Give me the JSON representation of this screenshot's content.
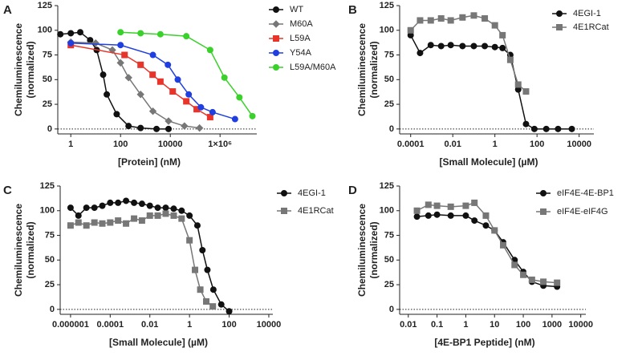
{
  "chart_data": [
    {
      "type": "scatter",
      "panel": "A",
      "xlabel": "[Protein] (nM)",
      "ylabel": [
        "Chemiluminescence",
        "(normalized)"
      ],
      "xscale": "log",
      "xlim": [
        0.3,
        30000000
      ],
      "xticks": [
        1,
        100,
        10000,
        {
          "value": 1000000,
          "label": "1×10⁶"
        }
      ],
      "ylim": [
        -5,
        125
      ],
      "yticks": [
        0,
        25,
        50,
        75,
        100,
        125
      ],
      "legend": "right",
      "series": [
        {
          "name": "WT",
          "color": "#111111",
          "marker": "circle",
          "x": [
            0.38,
            1,
            2.4,
            6,
            11,
            20,
            28,
            70,
            210,
            640,
            2800,
            8500
          ],
          "values": [
            96,
            97,
            98,
            90,
            80,
            55,
            35,
            15,
            3,
            1,
            0,
            0
          ]
        },
        {
          "name": "M60A",
          "color": "#777777",
          "marker": "diamond",
          "x": [
            1,
            10,
            47,
            100,
            210,
            640,
            2000,
            8500,
            37000,
            150000
          ],
          "values": [
            88,
            87,
            80,
            67,
            52,
            35,
            18,
            8,
            3,
            1
          ]
        },
        {
          "name": "L59A",
          "color": "#e8352b",
          "marker": "square",
          "x": [
            1,
            145,
            640,
            1950,
            4000,
            12500,
            44000,
            115000,
            400000
          ],
          "values": [
            85,
            75,
            65,
            55,
            48,
            38,
            28,
            20,
            12
          ]
        },
        {
          "name": "Y54A",
          "color": "#1f3fe0",
          "marker": "circle",
          "x": [
            1,
            100,
            2000,
            8000,
            20000,
            55000,
            170000,
            500000,
            4000000
          ],
          "values": [
            87,
            85,
            75,
            65,
            50,
            35,
            22,
            17,
            10
          ]
        },
        {
          "name": "L59A/M60A",
          "color": "#39d12a",
          "marker": "circle",
          "x": [
            100,
            640,
            4000,
            44000,
            400000,
            1500000,
            6000000,
            20000000
          ],
          "values": [
            98,
            97,
            96,
            94,
            80,
            52,
            32,
            13
          ]
        }
      ]
    },
    {
      "type": "scatter",
      "panel": "B",
      "xlabel": "[Small Molecule] (µM)",
      "ylabel": [
        "Chemiluminescence",
        "(normalized)"
      ],
      "xscale": "log",
      "xlim": [
        3e-05,
        50000
      ],
      "xticks": [
        0.0001,
        0.01,
        1,
        100,
        10000
      ],
      "ylim": [
        -5,
        125
      ],
      "yticks": [
        0,
        25,
        50,
        75,
        100,
        125
      ],
      "legend": "right",
      "series": [
        {
          "name": "4EGI-1",
          "color": "#111111",
          "marker": "circle",
          "x": [
            0.0001,
            0.00028,
            0.0009,
            0.0028,
            0.008,
            0.029,
            0.1,
            0.33,
            1,
            2.3,
            5.4,
            12.8,
            30,
            75,
            275,
            1000,
            4500
          ],
          "values": [
            95,
            77,
            85,
            84,
            85,
            84,
            84,
            84,
            83,
            82,
            75,
            40,
            5,
            0,
            0,
            0,
            0
          ]
        },
        {
          "name": "4E1RCat",
          "color": "#777777",
          "marker": "square",
          "x": [
            0.0001,
            0.00028,
            0.0009,
            0.0028,
            0.008,
            0.029,
            0.1,
            0.33,
            1,
            2.3,
            5.4,
            12.8,
            30
          ],
          "values": [
            100,
            110,
            110,
            112,
            110,
            113,
            115,
            112,
            105,
            95,
            70,
            45,
            38
          ]
        }
      ]
    },
    {
      "type": "scatter",
      "panel": "C",
      "xlabel": "[Small Molecule] (µM)",
      "ylabel": [
        "Chemiluminescence",
        "(normalized)"
      ],
      "xscale": "log",
      "xlim": [
        3e-07,
        16000
      ],
      "xticks": [
        1e-06,
        0.0001,
        0.01,
        1,
        100,
        10000
      ],
      "ylim": [
        -5,
        125
      ],
      "yticks": [
        0,
        25,
        50,
        75,
        100,
        125
      ],
      "legend": "right",
      "series": [
        {
          "name": "4EGI-1",
          "color": "#111111",
          "marker": "circle",
          "x": [
            1e-06,
            2.5e-06,
            6.3e-06,
            1.6e-05,
            4e-05,
            0.0001,
            0.00025,
            0.00063,
            0.0016,
            0.004,
            0.01,
            0.025,
            0.063,
            0.16,
            0.4,
            1,
            2.5,
            4.5,
            8,
            16,
            40,
            100
          ],
          "values": [
            103,
            95,
            103,
            103,
            105,
            108,
            108,
            110,
            108,
            107,
            105,
            103,
            103,
            102,
            100,
            95,
            85,
            60,
            40,
            20,
            5,
            -2
          ]
        },
        {
          "name": "4E1RCat",
          "color": "#777777",
          "marker": "square",
          "x": [
            1e-06,
            2.5e-06,
            6.3e-06,
            1.6e-05,
            4e-05,
            0.0001,
            0.00025,
            0.00063,
            0.0016,
            0.004,
            0.01,
            0.025,
            0.063,
            0.16,
            0.4,
            1,
            1.9,
            3.5,
            7,
            15
          ],
          "values": [
            85,
            88,
            85,
            88,
            87,
            88,
            90,
            87,
            92,
            90,
            95,
            95,
            97,
            95,
            92,
            70,
            40,
            20,
            8,
            3
          ]
        }
      ]
    },
    {
      "type": "scatter",
      "panel": "D",
      "xlabel": "[4E-BP1 Peptide] (nM)",
      "ylabel": [
        "Chemiluminescence",
        "(normalized)"
      ],
      "xscale": "log",
      "xlim": [
        0.005,
        15000
      ],
      "xticks": [
        0.01,
        0.1,
        1,
        10,
        100,
        1000,
        10000
      ],
      "ylim": [
        -5,
        125
      ],
      "yticks": [
        0,
        25,
        50,
        75,
        100,
        125
      ],
      "legend": "right",
      "series": [
        {
          "name": "eIF4E-4E-BP1",
          "color": "#111111",
          "marker": "circle",
          "x": [
            0.02,
            0.05,
            0.1,
            0.3,
            1,
            2,
            5,
            10,
            20,
            50,
            100,
            200,
            500,
            1500
          ],
          "values": [
            94,
            95,
            96,
            95,
            95,
            90,
            85,
            80,
            68,
            50,
            38,
            28,
            24,
            23
          ]
        },
        {
          "name": "eIF4E-eIF4G",
          "color": "#777777",
          "marker": "square",
          "x": [
            0.02,
            0.05,
            0.1,
            0.3,
            1,
            2,
            5,
            10,
            20,
            50,
            100,
            200,
            500,
            1500
          ],
          "values": [
            100,
            106,
            105,
            104,
            105,
            108,
            95,
            80,
            65,
            45,
            35,
            30,
            28,
            27
          ]
        }
      ]
    }
  ]
}
